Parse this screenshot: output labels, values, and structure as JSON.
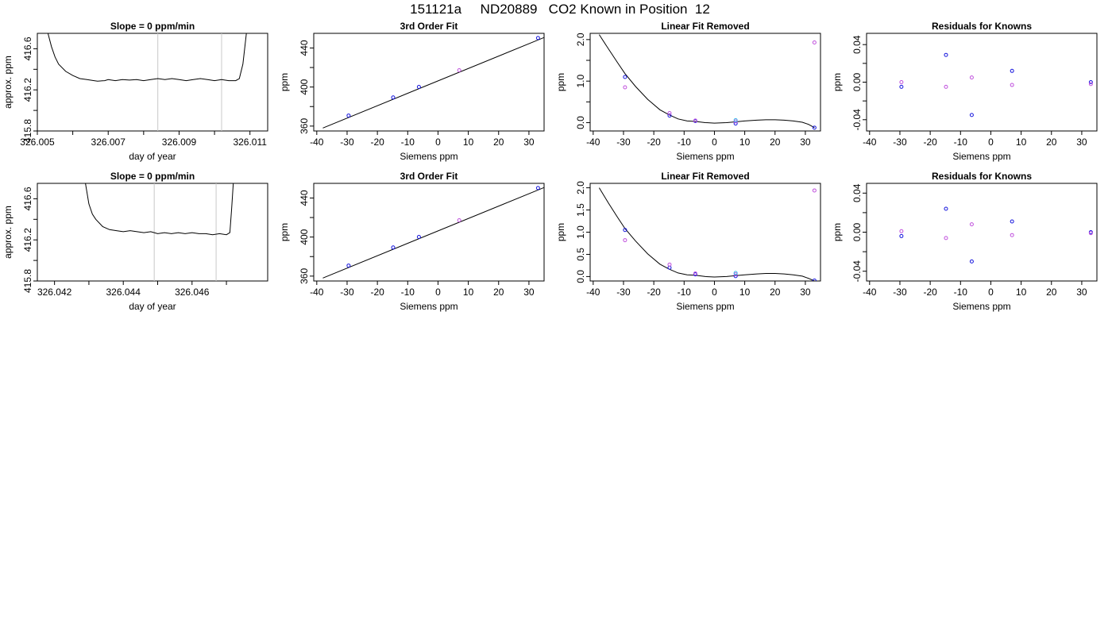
{
  "page_title": "151121a     ND20889   CO2 Known in Position  12",
  "chart_data": [
    {
      "type": "line",
      "row": 0,
      "title": "Slope =  0  ppm/min",
      "xlabel": "day of year",
      "ylabel": "approx. ppm",
      "xlim": [
        326.005,
        326.0115
      ],
      "ylim": [
        415.8,
        416.75
      ],
      "xticks": [
        326.005,
        326.006,
        326.007,
        326.008,
        326.009,
        326.01,
        326.011
      ],
      "xtick_labels": [
        "326.005",
        "",
        "326.007",
        "",
        "326.009",
        "",
        "326.011"
      ],
      "yticks": [
        415.8,
        416.0,
        416.2,
        416.4,
        416.6
      ],
      "ytick_labels": [
        "415.8",
        "",
        "416.2",
        "",
        "416.6"
      ],
      "vlines": [
        326.0084,
        326.0102
      ],
      "series": [
        {
          "color": "#000000",
          "x": [
            326.0053,
            326.0054,
            326.0055,
            326.0056,
            326.0058,
            326.006,
            326.0062,
            326.0064,
            326.0066,
            326.0067,
            326.0069,
            326.007,
            326.0072,
            326.0074,
            326.0076,
            326.0078,
            326.008,
            326.0082,
            326.0084,
            326.0086,
            326.0088,
            326.009,
            326.0092,
            326.0094,
            326.0096,
            326.0098,
            326.01,
            326.0102,
            326.0104,
            326.0106,
            326.0107,
            326.0108,
            326.01085,
            326.0109
          ],
          "y": [
            416.75,
            416.62,
            416.52,
            416.45,
            416.38,
            416.34,
            416.31,
            416.3,
            416.29,
            416.285,
            416.29,
            416.3,
            416.29,
            416.3,
            416.295,
            416.3,
            416.29,
            416.3,
            416.31,
            416.3,
            416.31,
            416.3,
            416.29,
            416.3,
            416.31,
            416.3,
            416.29,
            416.3,
            416.29,
            416.29,
            416.31,
            416.45,
            416.6,
            416.75
          ]
        }
      ]
    },
    {
      "type": "scatter",
      "row": 0,
      "title": "3rd Order Fit",
      "xlabel": "Siemens ppm",
      "ylabel": "ppm",
      "xlim": [
        -41,
        35
      ],
      "ylim": [
        355,
        455
      ],
      "xticks": [
        -40,
        -30,
        -20,
        -10,
        0,
        10,
        20,
        30
      ],
      "xtick_labels": [
        "-40",
        "-30",
        "-20",
        "-10",
        "0",
        "10",
        "20",
        "30"
      ],
      "yticks": [
        360,
        380,
        400,
        420,
        440
      ],
      "ytick_labels": [
        "360",
        "",
        "400",
        "",
        "440"
      ],
      "fit_line": {
        "x": [
          -38,
          36
        ],
        "y": [
          358,
          452
        ]
      },
      "series": [
        {
          "color": "#1515dd",
          "x": [
            -29.5,
            -14.8,
            -6.3,
            33
          ],
          "y": [
            370.8,
            389.3,
            400.1,
            450.2
          ]
        },
        {
          "color": "#c050dd",
          "x": [
            7
          ],
          "y": [
            417.2
          ]
        }
      ]
    },
    {
      "type": "scatter",
      "row": 0,
      "title": "Linear Fit Removed",
      "xlabel": "Siemens ppm",
      "ylabel": "ppm",
      "xlim": [
        -41,
        35
      ],
      "ylim": [
        -0.2,
        2.15
      ],
      "xticks": [
        -40,
        -30,
        -20,
        -10,
        0,
        10,
        20,
        30
      ],
      "xtick_labels": [
        "-40",
        "-30",
        "-20",
        "-10",
        "0",
        "10",
        "20",
        "30"
      ],
      "yticks": [
        0,
        0.5,
        1.0,
        1.5,
        2.0
      ],
      "ytick_labels": [
        "0.0",
        "",
        "1.0",
        "",
        "2.0"
      ],
      "curve": {
        "x": [
          -38,
          -35,
          -32,
          -29.5,
          -26,
          -22,
          -18,
          -15,
          -12,
          -9,
          -6.3,
          -3,
          0,
          4,
          7,
          10,
          14,
          17,
          20,
          23,
          26,
          29,
          31,
          33
        ],
        "y": [
          2.12,
          1.78,
          1.45,
          1.18,
          0.87,
          0.56,
          0.31,
          0.19,
          0.09,
          0.04,
          0.03,
          0.0,
          -0.01,
          0.0,
          0.02,
          0.04,
          0.06,
          0.07,
          0.07,
          0.06,
          0.04,
          0.01,
          -0.04,
          -0.12
        ]
      },
      "series": [
        {
          "color": "#1515dd",
          "x": [
            -29.5,
            -14.8,
            -6.3,
            7,
            33
          ],
          "y": [
            1.1,
            0.17,
            0.04,
            -0.02,
            -0.12
          ]
        },
        {
          "color": "#c050dd",
          "x": [
            -29.5,
            -14.8,
            -6.3,
            7,
            33
          ],
          "y": [
            0.85,
            0.23,
            0.05,
            0.03,
            1.93
          ]
        },
        {
          "color": "#38b8e8",
          "x": [
            7
          ],
          "y": [
            0.06
          ]
        }
      ]
    },
    {
      "type": "scatter",
      "row": 0,
      "title": "Residuals for Knowns",
      "xlabel": "Siemens ppm",
      "ylabel": "ppm",
      "xlim": [
        -41,
        35
      ],
      "ylim": [
        -0.052,
        0.052
      ],
      "xticks": [
        -40,
        -30,
        -20,
        -10,
        0,
        10,
        20,
        30
      ],
      "xtick_labels": [
        "-40",
        "-30",
        "-20",
        "-10",
        "0",
        "10",
        "20",
        "30"
      ],
      "yticks": [
        -0.04,
        -0.02,
        0,
        0.02,
        0.04
      ],
      "ytick_labels": [
        "-0.04",
        "",
        "0.00",
        "",
        "0.04"
      ],
      "series": [
        {
          "color": "#1515dd",
          "x": [
            -29.5,
            -14.8,
            -6.3,
            7,
            33
          ],
          "y": [
            -0.005,
            0.029,
            -0.035,
            0.012,
            0.0
          ]
        },
        {
          "color": "#c050dd",
          "x": [
            -29.5,
            -14.8,
            -6.3,
            7,
            33
          ],
          "y": [
            0.0,
            -0.005,
            0.005,
            -0.003,
            -0.002
          ]
        }
      ]
    },
    {
      "type": "line",
      "row": 1,
      "title": "Slope =  0  ppm/min",
      "xlabel": "day of year",
      "ylabel": "approx. ppm",
      "xlim": [
        326.0415,
        326.0482
      ],
      "ylim": [
        415.8,
        416.75
      ],
      "xticks": [
        326.042,
        326.043,
        326.044,
        326.045,
        326.046,
        326.047
      ],
      "xtick_labels": [
        "326.042",
        "",
        "326.044",
        "",
        "326.046",
        ""
      ],
      "yticks": [
        415.8,
        416.0,
        416.2,
        416.4,
        416.6
      ],
      "ytick_labels": [
        "415.8",
        "",
        "416.2",
        "",
        "416.6"
      ],
      "vlines": [
        326.0449,
        326.0467
      ],
      "series": [
        {
          "color": "#000000",
          "x": [
            326.0429,
            326.043,
            326.0431,
            326.0432,
            326.0434,
            326.0436,
            326.0438,
            326.044,
            326.0442,
            326.0444,
            326.0446,
            326.0448,
            326.045,
            326.0452,
            326.0454,
            326.0456,
            326.0458,
            326.046,
            326.0462,
            326.0464,
            326.0466,
            326.0468,
            326.047,
            326.0471,
            326.04715,
            326.0472
          ],
          "y": [
            416.75,
            416.55,
            416.45,
            416.4,
            416.33,
            416.3,
            416.29,
            416.28,
            416.29,
            416.28,
            416.27,
            416.28,
            416.26,
            416.27,
            416.26,
            416.27,
            416.26,
            416.27,
            416.26,
            416.26,
            416.25,
            416.26,
            416.25,
            416.27,
            416.5,
            416.75
          ]
        }
      ]
    },
    {
      "type": "scatter",
      "row": 1,
      "title": "3rd Order Fit",
      "xlabel": "Siemens ppm",
      "ylabel": "ppm",
      "xlim": [
        -41,
        35
      ],
      "ylim": [
        355,
        455
      ],
      "xticks": [
        -40,
        -30,
        -20,
        -10,
        0,
        10,
        20,
        30
      ],
      "xtick_labels": [
        "-40",
        "-30",
        "-20",
        "-10",
        "0",
        "10",
        "20",
        "30"
      ],
      "yticks": [
        360,
        380,
        400,
        420,
        440
      ],
      "ytick_labels": [
        "360",
        "",
        "400",
        "",
        "440"
      ],
      "fit_line": {
        "x": [
          -38,
          36
        ],
        "y": [
          358,
          452
        ]
      },
      "series": [
        {
          "color": "#1515dd",
          "x": [
            -29.5,
            -14.8,
            -6.3,
            33
          ],
          "y": [
            370.8,
            389.3,
            400.1,
            450.2
          ]
        },
        {
          "color": "#c050dd",
          "x": [
            7
          ],
          "y": [
            417.2
          ]
        }
      ]
    },
    {
      "type": "scatter",
      "row": 1,
      "title": "Linear Fit Removed",
      "xlabel": "Siemens ppm",
      "ylabel": "ppm",
      "xlim": [
        -41,
        35
      ],
      "ylim": [
        -0.1,
        2.1
      ],
      "xticks": [
        -40,
        -30,
        -20,
        -10,
        0,
        10,
        20,
        30
      ],
      "xtick_labels": [
        "-40",
        "-30",
        "-20",
        "-10",
        "0",
        "10",
        "20",
        "30"
      ],
      "yticks": [
        0,
        0.5,
        1.0,
        1.5,
        2.0
      ],
      "ytick_labels": [
        "0.0",
        "0.5",
        "1.0",
        "1.5",
        "2.0"
      ],
      "curve": {
        "x": [
          -38,
          -35,
          -32,
          -29.5,
          -26,
          -22,
          -18,
          -15,
          -12,
          -9,
          -6.3,
          -3,
          0,
          4,
          7,
          10,
          14,
          17,
          20,
          23,
          26,
          29,
          31,
          33
        ],
        "y": [
          2.0,
          1.66,
          1.34,
          1.08,
          0.8,
          0.51,
          0.28,
          0.17,
          0.08,
          0.04,
          0.03,
          0.0,
          -0.01,
          0.0,
          0.02,
          0.04,
          0.06,
          0.07,
          0.07,
          0.06,
          0.04,
          0.01,
          -0.04,
          -0.1
        ]
      },
      "series": [
        {
          "color": "#1515dd",
          "x": [
            -29.5,
            -14.8,
            -6.3,
            7,
            33
          ],
          "y": [
            1.05,
            0.2,
            0.05,
            0.01,
            -0.09
          ]
        },
        {
          "color": "#c050dd",
          "x": [
            -29.5,
            -14.8,
            -6.3,
            7,
            33
          ],
          "y": [
            0.82,
            0.27,
            0.07,
            0.05,
            1.94
          ]
        },
        {
          "color": "#38b8e8",
          "x": [
            7
          ],
          "y": [
            0.08
          ]
        }
      ]
    },
    {
      "type": "scatter",
      "row": 1,
      "title": "Residuals for Knowns",
      "xlabel": "Siemens ppm",
      "ylabel": "ppm",
      "xlim": [
        -41,
        35
      ],
      "ylim": [
        -0.05,
        0.05
      ],
      "xticks": [
        -40,
        -30,
        -20,
        -10,
        0,
        10,
        20,
        30
      ],
      "xtick_labels": [
        "-40",
        "-30",
        "-20",
        "-10",
        "0",
        "10",
        "20",
        "30"
      ],
      "yticks": [
        -0.04,
        -0.02,
        0,
        0.02,
        0.04
      ],
      "ytick_labels": [
        "-0.04",
        "",
        "0.00",
        "",
        "0.04"
      ],
      "series": [
        {
          "color": "#1515dd",
          "x": [
            -29.5,
            -14.8,
            -6.3,
            7,
            33
          ],
          "y": [
            -0.004,
            0.024,
            -0.03,
            0.011,
            0.0
          ]
        },
        {
          "color": "#c050dd",
          "x": [
            -29.5,
            -14.8,
            -6.3,
            7,
            33
          ],
          "y": [
            0.001,
            -0.006,
            0.008,
            -0.003,
            -0.001
          ]
        }
      ]
    }
  ]
}
